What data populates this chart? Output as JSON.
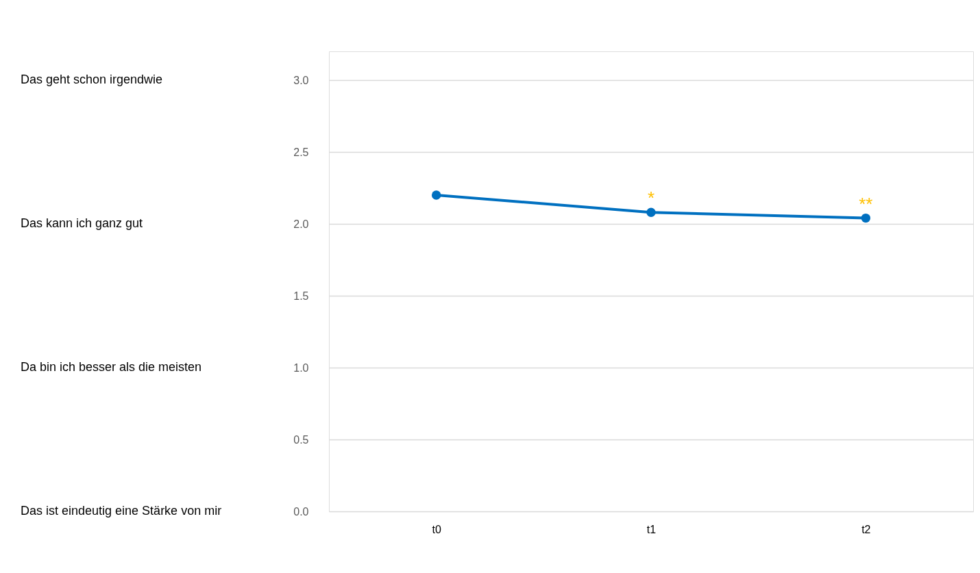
{
  "chart_data": {
    "type": "line",
    "categories": [
      "t0",
      "t1",
      "t2"
    ],
    "series": [
      {
        "color": "#0070c0",
        "values": [
          2.2,
          2.08,
          2.04
        ],
        "value_labels": [
          null,
          "*",
          "**"
        ]
      }
    ],
    "ylim": [
      0,
      3.2
    ],
    "yticks": [
      {
        "value": 0,
        "label": "0.0"
      },
      {
        "value": 0.5,
        "label": "0.5"
      },
      {
        "value": 1,
        "label": "1.0"
      },
      {
        "value": 1.5,
        "label": "1.5"
      },
      {
        "value": 2,
        "label": "2.0"
      },
      {
        "value": 2.5,
        "label": "2.5"
      },
      {
        "value": 3,
        "label": "3.0"
      }
    ],
    "annotations": [
      "Das geht schon irgendwie",
      "Das kann ich ganz gut",
      "Da bin ich besser als die meisten",
      "Das ist eindeutig eine Stärke von mir"
    ],
    "grid": "y",
    "marker": "circle",
    "line_style": "solid"
  }
}
